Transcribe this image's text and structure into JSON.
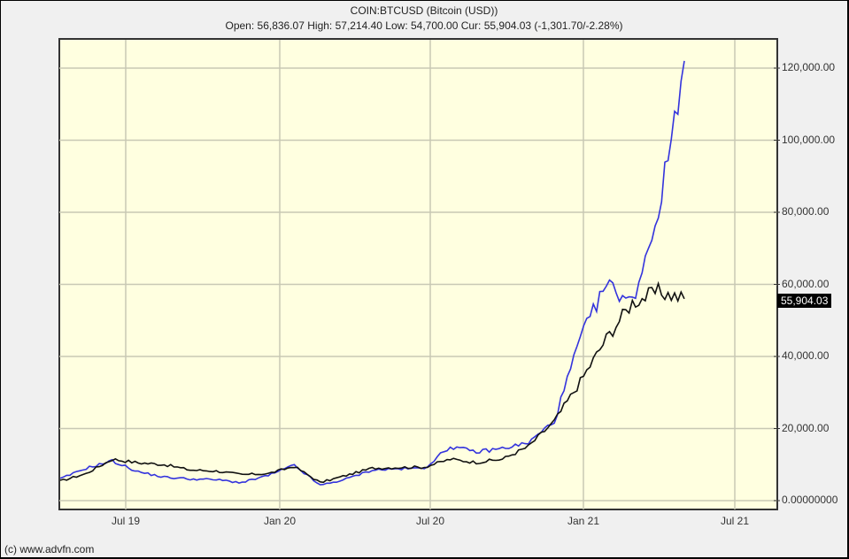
{
  "header": {
    "title": "COIN:BTCUSD (Bitcoin (USD))",
    "quote_line": "Open: 56,836.07 High: 57,214.40 Low: 54,700.00 Cur: 55,904.03 (-1,301.70/-2.28%)"
  },
  "y_axis": {
    "labels": [
      "120,000.00",
      "100,000.00",
      "80,000.00",
      "60,000.00",
      "40,000.00",
      "20,000.00",
      "0.00000000"
    ],
    "current_badge": "55,904.03"
  },
  "x_axis": {
    "labels": [
      "Jul 19",
      "Jan 20",
      "Jul 20",
      "Jan 21",
      "Jul 21"
    ]
  },
  "footer": {
    "copyright": "(c) www.advfn.com"
  },
  "colors": {
    "plot_bg": "#ffffe0",
    "grid": "#c8c8b4",
    "btc_line": "#111111",
    "compare_line": "#3333dd",
    "badge_bg": "#000000"
  },
  "chart_data": {
    "type": "line",
    "title": "COIN:BTCUSD (Bitcoin (USD))",
    "subtitle": "Open: 56,836.07 High: 57,214.40 Low: 54,700.00 Cur: 55,904.03 (-1,301.70/-2.28%)",
    "xlabel": "",
    "ylabel": "",
    "ylim": [
      0,
      120000
    ],
    "xticks": [
      "Jul 19",
      "Jan 20",
      "Jul 20",
      "Jan 21",
      "Jul 21"
    ],
    "grid": true,
    "legend": "none",
    "x": [
      "2019-05",
      "2019-06",
      "2019-07",
      "2019-08",
      "2019-09",
      "2019-10",
      "2019-11",
      "2019-12",
      "2020-01",
      "2020-02",
      "2020-03",
      "2020-04",
      "2020-05",
      "2020-06",
      "2020-07",
      "2020-08",
      "2020-09",
      "2020-10",
      "2020-11",
      "2020-12",
      "2021-01",
      "2021-02",
      "2021-03",
      "2021-04",
      "2021-05"
    ],
    "series": [
      {
        "name": "BTCUSD",
        "color": "#111111",
        "values": [
          5400,
          7500,
          11500,
          10500,
          10000,
          8500,
          8200,
          7200,
          7500,
          9500,
          5000,
          7000,
          9000,
          9200,
          9300,
          11500,
          10600,
          11500,
          15000,
          22000,
          33000,
          45000,
          55000,
          58000,
          56000
        ]
      },
      {
        "name": "Comparison",
        "color": "#3333dd",
        "values": [
          6000,
          9000,
          11000,
          8000,
          6500,
          6000,
          5800,
          5000,
          7000,
          9800,
          4200,
          6000,
          8500,
          8800,
          9000,
          15000,
          13500,
          14500,
          16000,
          22000,
          45000,
          60000,
          55000,
          80000,
          122000
        ]
      }
    ]
  }
}
